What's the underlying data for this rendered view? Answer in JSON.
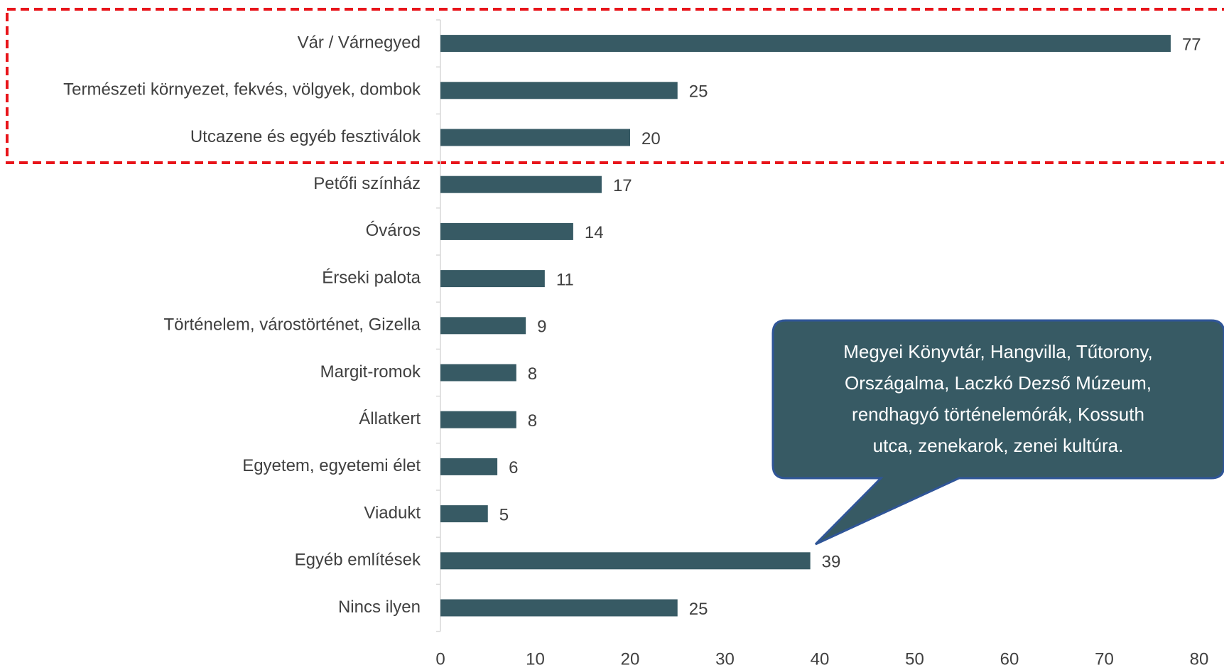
{
  "chart_data": {
    "type": "hbar",
    "categories": [
      "Vár / Várnegyed",
      "Természeti környezet, fekvés, völgyek, dombok",
      "Utcazene és egyéb fesztiválok",
      "Petőfi színház",
      "Óváros",
      "Érseki palota",
      "Történelem, várostörténet, Gizella",
      "Margit-romok",
      "Állatkert",
      "Egyetem, egyetemi élet",
      "Viadukt",
      "Egyéb említések",
      "Nincs ilyen"
    ],
    "values": [
      77,
      25,
      20,
      17,
      14,
      11,
      9,
      8,
      8,
      6,
      5,
      39,
      25
    ],
    "color": "#375a64",
    "xlim": [
      0,
      80
    ],
    "xticks": [
      0,
      10,
      20,
      30,
      40,
      50,
      60,
      70,
      80
    ],
    "annotation": [
      "Megyei Könyvtár, Hangvilla, Tűtorony,",
      "Országalma, Laczkó Dezső Múzeum,",
      "rendhagyó történelemórák, Kossuth",
      "utca, zenekarok, zenei kultúra."
    ]
  }
}
